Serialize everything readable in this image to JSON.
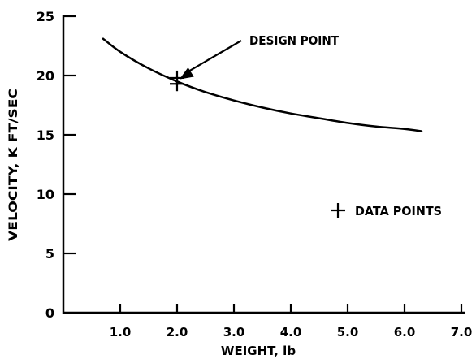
{
  "chart_data": {
    "type": "line",
    "xlabel": "WEIGHT, lb",
    "ylabel": "VELOCITY, K FT/SEC",
    "xlim": [
      0,
      7.0
    ],
    "ylim": [
      0,
      25
    ],
    "x_ticks": [
      1.0,
      2.0,
      3.0,
      4.0,
      5.0,
      6.0,
      7.0
    ],
    "x_tick_labels": [
      "1.0",
      "2.0",
      "3.0",
      "4.0",
      "5.0",
      "6.0",
      "7.0"
    ],
    "y_ticks": [
      0,
      5,
      10,
      15,
      20,
      25
    ],
    "y_tick_labels": [
      "0",
      "5",
      "10",
      "15",
      "20",
      "25"
    ],
    "grid": false,
    "series": [
      {
        "x": [
          0.7,
          1.0,
          1.5,
          2.0,
          2.5,
          3.0,
          3.5,
          4.0,
          4.5,
          5.0,
          5.5,
          6.0,
          6.3
        ],
        "y": [
          23.1,
          22.0,
          20.6,
          19.5,
          18.6,
          17.9,
          17.3,
          16.8,
          16.4,
          16.0,
          15.7,
          15.5,
          15.3
        ]
      }
    ],
    "data_points": [
      {
        "x": 2.0,
        "y": 19.3
      },
      {
        "x": 2.0,
        "y": 19.8
      }
    ],
    "annotations": [
      {
        "text": "DESIGN POINT",
        "x": 2.0,
        "y": 19.8
      }
    ],
    "legend": {
      "marker": "+",
      "label": "DATA POINTS",
      "placement": "center-right"
    },
    "colors": {
      "line": "#000000",
      "background": "#ffffff"
    }
  }
}
